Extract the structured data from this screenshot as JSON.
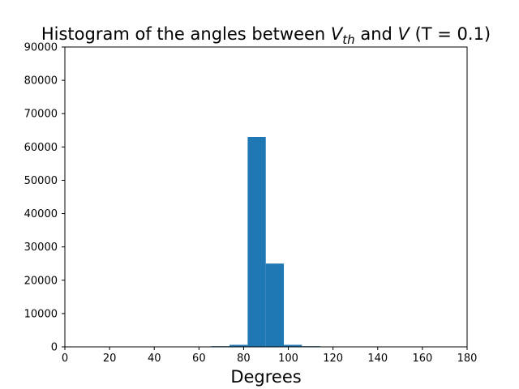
{
  "chart_data": {
    "type": "bar",
    "title": {
      "prefix": "Histogram of the angles between ",
      "v1": "V",
      "v1_sub": "th",
      "middle": " and ",
      "v2": "V",
      "suffix": " (T = 0.1)"
    },
    "xlabel": "Degrees",
    "ylabel": "",
    "xlim": [
      0,
      180
    ],
    "ylim": [
      0,
      90000
    ],
    "xticks": [
      0,
      20,
      40,
      60,
      80,
      100,
      120,
      140,
      160,
      180
    ],
    "yticks": [
      0,
      10000,
      20000,
      30000,
      40000,
      50000,
      60000,
      70000,
      80000,
      90000
    ],
    "bin_width": 8.1,
    "bins": [
      {
        "x_start": 65.6,
        "value": 200
      },
      {
        "x_start": 73.7,
        "value": 600
      },
      {
        "x_start": 81.8,
        "value": 63000
      },
      {
        "x_start": 89.9,
        "value": 25000
      },
      {
        "x_start": 98.0,
        "value": 600
      },
      {
        "x_start": 106.1,
        "value": 200
      }
    ],
    "bar_color": "#1f77b4",
    "grid": false
  }
}
